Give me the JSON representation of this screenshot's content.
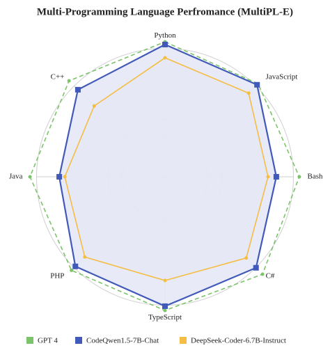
{
  "chart_data": {
    "type": "radar",
    "title": "Multi-Programming Language Perfromance (MultiPL-E)",
    "categories": [
      "Python",
      "JavaScript",
      "Bash",
      "C#",
      "TypeScript",
      "PHP",
      "Java",
      "C++"
    ],
    "ylim": [
      0,
      100
    ],
    "yticks": [
      30,
      40,
      90
    ],
    "grid": true,
    "legend": "bottom",
    "series": [
      {
        "name": "GPT 4",
        "color": "#7cc46a",
        "linestyle": "dashed",
        "values": [
          94.6,
          92.2,
          94.1,
          96.6,
          93.7,
          92.7,
          94.6,
          95.1
        ]
      },
      {
        "name": "CodeQwen1.5-7B-Chat",
        "color": "#4159b8",
        "fill": "#e6e8f7",
        "marker": "square",
        "values": [
          92.7,
          91.2,
          78.0,
          90.2,
          90.7,
          88.8,
          74.1,
          86.3
        ]
      },
      {
        "name": "DeepSeek-Coder-6.7B-Instruct",
        "color": "#f5bd42",
        "fill": "#d6d6cc",
        "values": [
          83.4,
          82.9,
          72.2,
          80.5,
          72.7,
          79.5,
          70.2,
          70.2
        ]
      }
    ]
  }
}
